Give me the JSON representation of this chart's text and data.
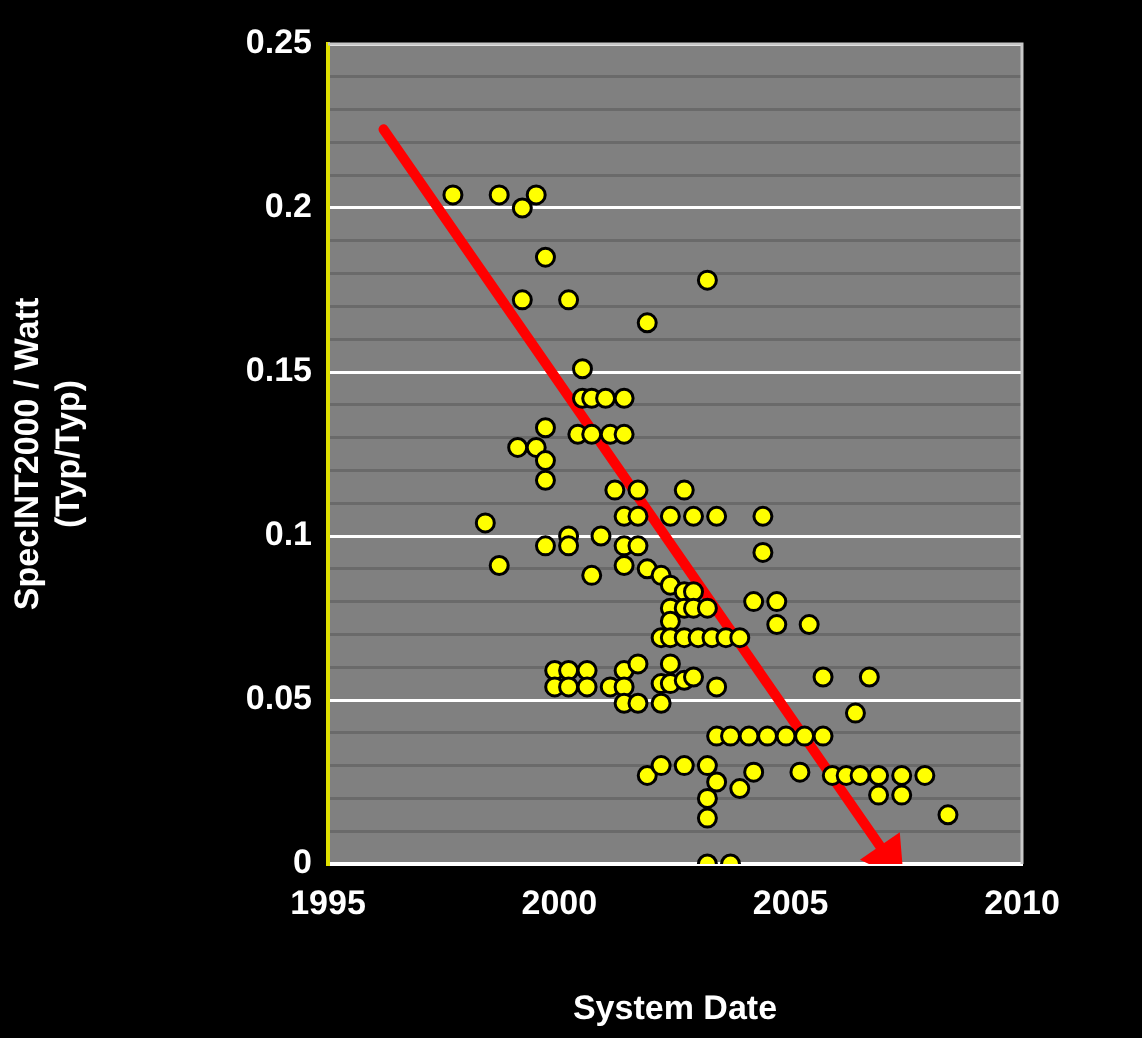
{
  "chart_data": {
    "type": "scatter",
    "xlabel": "System Date",
    "ylabel": "SpecINT2000 / Watt\n(Typ/Typ)",
    "xlim": [
      1995,
      2010
    ],
    "xticks": [
      1995,
      2000,
      2005,
      2010
    ],
    "ylim": [
      0,
      0.25
    ],
    "yticks": [
      0,
      {
        "value": 0.01,
        "label": null
      },
      {
        "value": 0.02,
        "label": null
      },
      {
        "value": 0.03,
        "label": null
      },
      {
        "value": 0.04,
        "label": null
      },
      0.05,
      {
        "value": 0.06,
        "label": null
      },
      {
        "value": 0.07,
        "label": null
      },
      {
        "value": 0.08,
        "label": null
      },
      {
        "value": 0.09,
        "label": null
      },
      0.1,
      {
        "value": 0.11,
        "label": null
      },
      {
        "value": 0.12,
        "label": null
      },
      {
        "value": 0.13,
        "label": null
      },
      {
        "value": 0.14,
        "label": null
      },
      0.15,
      {
        "value": 0.16,
        "label": null
      },
      {
        "value": 0.17,
        "label": null
      },
      {
        "value": 0.18,
        "label": null
      },
      {
        "value": 0.19,
        "label": null
      },
      0.2,
      {
        "value": 0.21,
        "label": null
      },
      {
        "value": 0.22,
        "label": null
      },
      {
        "value": 0.23,
        "label": null
      },
      {
        "value": 0.24,
        "label": null
      },
      0.25
    ],
    "grid": "y",
    "marker": "circle",
    "legend": false,
    "series": [
      {
        "type": "line",
        "color": "#ff0000",
        "marker": "triangle",
        "x": [
          1996.2,
          2007.1
        ],
        "values": [
          0.224,
          0.002
        ]
      },
      {
        "color": "#ffff00",
        "x": [
          1997.7,
          1998.7,
          1999.5,
          1999.2,
          1999.7,
          2003.2,
          1999.2,
          2000.2,
          2001.9,
          2000.5,
          2000.5,
          2000.7,
          2001.0,
          2001.4,
          1999.7,
          2000.4,
          2000.7,
          2001.1,
          2001.4,
          1999.1,
          1999.5,
          1999.7,
          1999.7,
          2001.2,
          2001.7,
          2002.7,
          2001.4,
          2001.7,
          2002.4,
          2002.9,
          2003.4,
          2004.4,
          1998.4,
          2000.2,
          1999.7,
          2000.2,
          2000.9,
          2001.4,
          2001.7,
          2004.4,
          1998.7,
          2001.4,
          2000.7,
          2001.9,
          2002.2,
          2002.4,
          2002.7,
          2002.9,
          2004.2,
          2004.7,
          2002.4,
          2002.7,
          2002.9,
          2003.2,
          2002.4,
          2004.7,
          2005.4,
          2002.2,
          2002.4,
          2002.7,
          2003.0,
          2003.3,
          2003.6,
          2003.9,
          1999.9,
          2000.2,
          2000.6,
          1999.9,
          2000.2,
          2000.6,
          2001.4,
          2001.7,
          2001.1,
          2001.4,
          2002.4,
          2002.2,
          2002.4,
          2002.7,
          2002.9,
          2003.4,
          2001.4,
          2001.7,
          2002.2,
          2005.7,
          2006.7,
          2006.4,
          2003.4,
          2003.7,
          2004.1,
          2004.5,
          2004.9,
          2005.3,
          2005.7,
          2001.9,
          2002.2,
          2002.7,
          2003.2,
          2003.4,
          2003.9,
          2004.2,
          2005.2,
          2005.9,
          2006.2,
          2006.5,
          2006.9,
          2007.4,
          2007.9,
          2006.9,
          2007.4,
          2003.2,
          2003.2,
          2008.4,
          2003.2,
          2003.7
        ],
        "values": [
          0.204,
          0.204,
          0.204,
          0.2,
          0.185,
          0.178,
          0.172,
          0.172,
          0.165,
          0.151,
          0.142,
          0.142,
          0.142,
          0.142,
          0.133,
          0.131,
          0.131,
          0.131,
          0.131,
          0.127,
          0.127,
          0.123,
          0.117,
          0.114,
          0.114,
          0.114,
          0.106,
          0.106,
          0.106,
          0.106,
          0.106,
          0.106,
          0.104,
          0.1,
          0.097,
          0.097,
          0.1,
          0.097,
          0.097,
          0.095,
          0.091,
          0.091,
          0.088,
          0.09,
          0.088,
          0.085,
          0.083,
          0.083,
          0.08,
          0.08,
          0.078,
          0.078,
          0.078,
          0.078,
          0.074,
          0.073,
          0.073,
          0.069,
          0.069,
          0.069,
          0.069,
          0.069,
          0.069,
          0.069,
          0.059,
          0.059,
          0.059,
          0.054,
          0.054,
          0.054,
          0.059,
          0.061,
          0.054,
          0.054,
          0.061,
          0.055,
          0.055,
          0.056,
          0.057,
          0.054,
          0.049,
          0.049,
          0.049,
          0.057,
          0.057,
          0.046,
          0.039,
          0.039,
          0.039,
          0.039,
          0.039,
          0.039,
          0.039,
          0.027,
          0.03,
          0.03,
          0.03,
          0.025,
          0.023,
          0.028,
          0.028,
          0.027,
          0.027,
          0.027,
          0.027,
          0.027,
          0.027,
          0.021,
          0.021,
          0.02,
          0.014,
          0.015,
          0,
          0
        ]
      }
    ]
  }
}
